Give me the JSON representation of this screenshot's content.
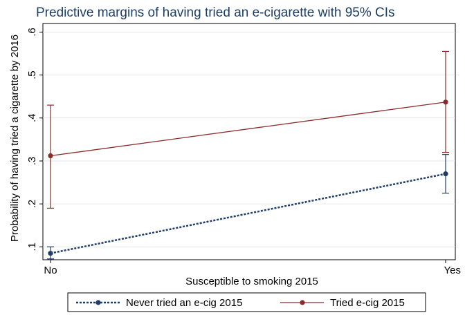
{
  "chart_data": {
    "type": "line",
    "title": "Predictive margins of having tried an e-cigarette with 95% CIs",
    "xlabel": "Susceptible to smoking 2015",
    "ylabel": "Probability of having tried a cigarette by 2016",
    "categories": [
      "No",
      "Yes"
    ],
    "ylim": [
      0.07,
      0.62
    ],
    "yticks": [
      0.1,
      0.2,
      0.3,
      0.4,
      0.5,
      0.6
    ],
    "ytick_labels": [
      ".1",
      ".2",
      ".3",
      ".4",
      ".5",
      ".6"
    ],
    "grid": true,
    "legend_position": "bottom",
    "series": [
      {
        "name": "Never tried an e-cig 2015",
        "values": [
          0.085,
          0.27
        ],
        "ci_low": [
          0.072,
          0.225
        ],
        "ci_high": [
          0.1,
          0.315
        ],
        "color": "#1f3d6b",
        "style": "dotted"
      },
      {
        "name": "Tried e-cig 2015",
        "values": [
          0.312,
          0.437
        ],
        "ci_low": [
          0.19,
          0.32
        ],
        "ci_high": [
          0.43,
          0.555
        ],
        "color": "#8b2a2a",
        "style": "solid"
      }
    ]
  }
}
